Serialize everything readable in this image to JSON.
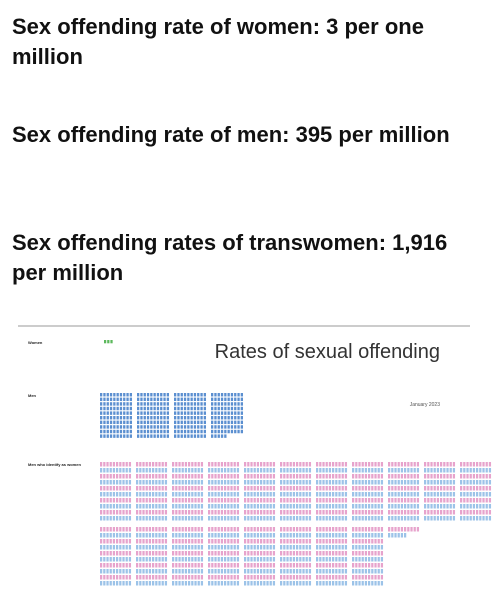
{
  "headlines": [
    "Sex offending rate of women: 3 per one million",
    "Sex offending rate of men: 395 per million",
    "Sex offending rates of transwomen: 1,916 per million"
  ],
  "infographic": {
    "title": "Rates of sexual offending",
    "date": "January 2023",
    "rows": [
      {
        "label": "Women",
        "value": 3,
        "colors": [
          "#5cb85c"
        ]
      },
      {
        "label": "Men",
        "value": 395,
        "colors": [
          "#5b8fd0"
        ]
      },
      {
        "label": "Men who identify as women",
        "value": 1916,
        "colors": [
          "#e7a3cc",
          "#9cc3e8"
        ]
      }
    ]
  }
}
